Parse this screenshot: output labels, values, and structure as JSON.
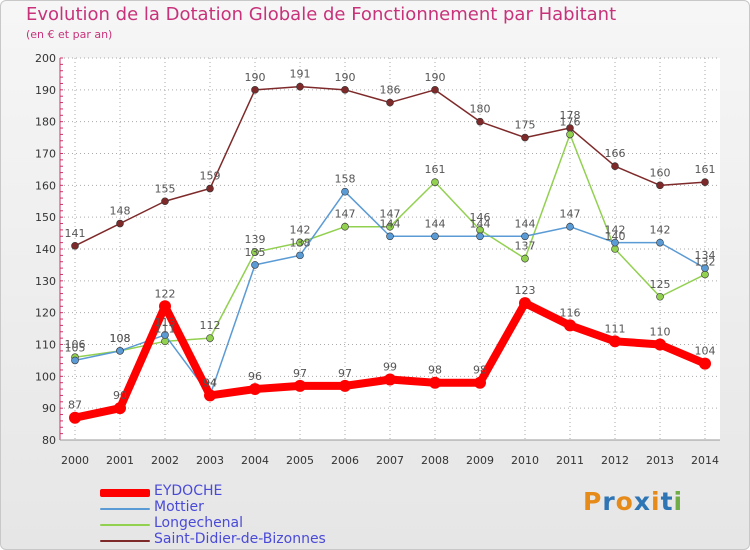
{
  "chart_data": {
    "type": "line",
    "title": "Evolution de la Dotation Globale de Fonctionnement par Habitant",
    "subtitle": "(en € et par an)",
    "categories": [
      "2000",
      "2001",
      "2002",
      "2003",
      "2004",
      "2005",
      "2006",
      "2007",
      "2008",
      "2009",
      "2010",
      "2011",
      "2012",
      "2013",
      "2014"
    ],
    "ylim": [
      80,
      200
    ],
    "yticks": [
      80,
      90,
      100,
      110,
      120,
      130,
      140,
      150,
      160,
      170,
      180,
      190,
      200
    ],
    "grid": true,
    "series": [
      {
        "name": "EYDOCHE",
        "color": "#ff0000",
        "values": [
          87,
          90,
          122,
          94,
          96,
          97,
          97,
          99,
          98,
          98,
          123,
          116,
          111,
          110,
          104
        ]
      },
      {
        "name": "Mottier",
        "color": "#5b9bd5",
        "values": [
          105,
          108,
          113,
          94,
          135,
          138,
          158,
          144,
          144,
          144,
          144,
          147,
          142,
          142,
          134
        ]
      },
      {
        "name": "Longechenal",
        "color": "#92d050",
        "values": [
          106,
          108,
          111,
          112,
          139,
          142,
          147,
          147,
          161,
          146,
          137,
          176,
          140,
          125,
          132
        ]
      },
      {
        "name": "Saint-Didier-de-Bizonnes",
        "color": "#7f2a2a",
        "values": [
          141,
          148,
          155,
          159,
          190,
          191,
          190,
          186,
          190,
          180,
          175,
          178,
          166,
          160,
          161
        ]
      }
    ]
  },
  "logo": {
    "text": "Proxiti",
    "letter_colors": [
      "#e68a1a",
      "#2e75b6",
      "#e68a1a",
      "#2e75b6",
      "#e68a1a",
      "#2e75b6",
      "#70ad47"
    ]
  }
}
